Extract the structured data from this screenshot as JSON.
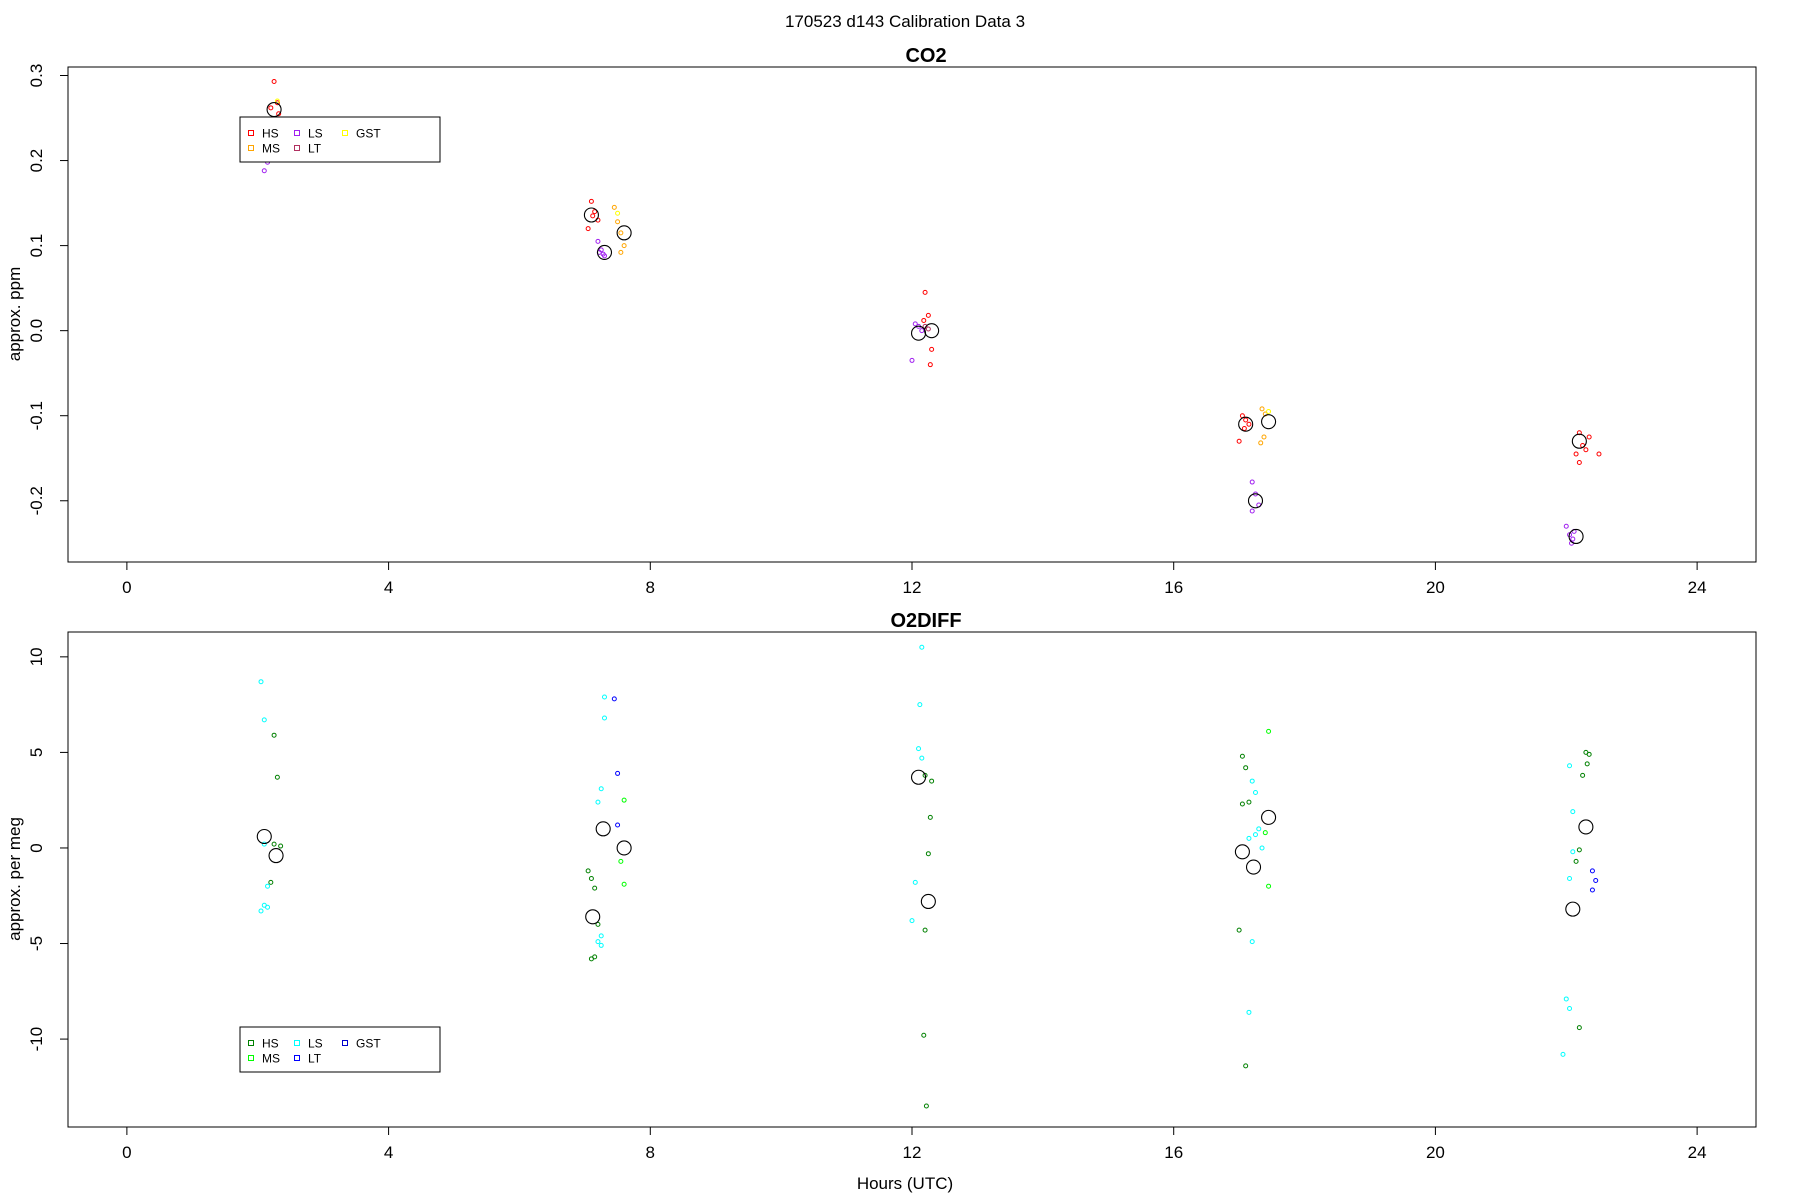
{
  "figure": {
    "title": "170523   d143   Calibration Data 3"
  },
  "chart_data": [
    {
      "type": "scatter",
      "title": "CO2",
      "xlabel": "",
      "ylabel": "approx. ppm",
      "xlim": [
        -0.9,
        24.9
      ],
      "ylim": [
        -0.272,
        0.31
      ],
      "xticks": [
        0,
        4,
        8,
        12,
        16,
        20,
        24
      ],
      "yticks": [
        -0.2,
        -0.1,
        0.0,
        0.1,
        0.2,
        0.3
      ],
      "ytick_labels": [
        "-0.2",
        "-0.1",
        "0.0",
        "0.1",
        "0.2",
        "0.3"
      ],
      "legend": {
        "position": "top-left",
        "entries": [
          {
            "label": "HS",
            "color": "#ff0000"
          },
          {
            "label": "MS",
            "color": "#ffa500"
          },
          {
            "label": "LS",
            "color": "#a020f0"
          },
          {
            "label": "LT",
            "color": "#b03060"
          },
          {
            "label": "GST",
            "color": "#ffff00"
          }
        ]
      },
      "series": [
        {
          "name": "HS",
          "color": "#ff0000",
          "x": [
            2.25,
            2.3,
            2.2,
            2.32,
            7.1,
            7.15,
            7.2,
            7.05,
            7.12,
            12.2,
            12.25,
            12.3,
            12.28,
            12.18,
            17.05,
            17.1,
            17.15,
            17.0,
            17.08,
            22.2,
            22.25,
            22.3,
            22.15,
            22.35,
            22.5,
            22.2
          ],
          "y": [
            0.293,
            0.268,
            0.262,
            0.255,
            0.152,
            0.14,
            0.13,
            0.12,
            0.135,
            0.045,
            0.018,
            -0.022,
            -0.04,
            0.012,
            -0.1,
            -0.105,
            -0.11,
            -0.13,
            -0.115,
            -0.12,
            -0.135,
            -0.14,
            -0.145,
            -0.125,
            -0.145,
            -0.155
          ]
        },
        {
          "name": "MS",
          "color": "#ffa500",
          "x": [
            7.45,
            7.5,
            7.55,
            7.6,
            7.55,
            17.35,
            17.4,
            17.38,
            17.33
          ],
          "y": [
            0.145,
            0.128,
            0.115,
            0.1,
            0.092,
            -0.092,
            -0.098,
            -0.125,
            -0.132
          ]
        },
        {
          "name": "LS",
          "color": "#a020f0",
          "x": [
            2.1,
            2.15,
            2.1,
            7.2,
            7.25,
            7.3,
            7.22,
            7.28,
            12.05,
            12.1,
            12.15,
            12.0,
            17.2,
            17.25,
            17.3,
            17.2,
            22.0,
            22.05,
            22.1,
            22.08,
            22.12
          ],
          "y": [
            0.21,
            0.198,
            0.188,
            0.105,
            0.095,
            0.088,
            0.092,
            0.09,
            0.008,
            0.005,
            0.0,
            -0.035,
            -0.178,
            -0.192,
            -0.205,
            -0.212,
            -0.23,
            -0.24,
            -0.245,
            -0.25,
            -0.236
          ]
        },
        {
          "name": "LT",
          "color": "#b03060",
          "x": [
            12.2,
            12.25
          ],
          "y": [
            0.005,
            0.002
          ]
        },
        {
          "name": "GST",
          "color": "#ffff00",
          "x": [
            7.5,
            17.45,
            2.3
          ],
          "y": [
            0.138,
            -0.095,
            0.27
          ]
        },
        {
          "name": "",
          "color": "#000000",
          "marker": "mean",
          "x": [
            2.25,
            7.1,
            7.3,
            7.6,
            12.1,
            12.3,
            17.1,
            17.25,
            17.45,
            22.2,
            22.15
          ],
          "y": [
            0.26,
            0.136,
            0.092,
            0.115,
            -0.003,
            0.0,
            -0.11,
            -0.2,
            -0.107,
            -0.13,
            -0.242
          ]
        }
      ]
    },
    {
      "type": "scatter",
      "title": "O2DIFF",
      "xlabel": "Hours (UTC)",
      "ylabel": "approx. per meg",
      "xlim": [
        -0.9,
        24.9
      ],
      "ylim": [
        -14.6,
        11.3
      ],
      "xticks": [
        0,
        4,
        8,
        12,
        16,
        20,
        24
      ],
      "yticks": [
        -10,
        -5,
        0,
        5,
        10
      ],
      "ytick_labels": [
        "-10",
        "-5",
        "0",
        "5",
        "10"
      ],
      "legend": {
        "position": "bottom-left",
        "entries": [
          {
            "label": "HS",
            "color": "#008000"
          },
          {
            "label": "MS",
            "color": "#00ff00"
          },
          {
            "label": "LS",
            "color": "#00ffff"
          },
          {
            "label": "LT",
            "color": "#0000ff"
          },
          {
            "label": "GST",
            "color": "#0000cd"
          }
        ]
      },
      "series": [
        {
          "name": "HS",
          "color": "#008000",
          "x": [
            2.25,
            2.3,
            2.25,
            2.35,
            2.2,
            7.05,
            7.1,
            7.15,
            7.2,
            7.1,
            7.15,
            12.2,
            12.3,
            12.28,
            12.25,
            12.2,
            12.18,
            12.22,
            17.05,
            17.1,
            17.15,
            17.05,
            17.0,
            17.1,
            22.3,
            22.35,
            22.32,
            22.25,
            22.2,
            22.15,
            22.2
          ],
          "y": [
            5.9,
            3.7,
            0.2,
            0.1,
            -1.8,
            -1.2,
            -1.6,
            -2.1,
            -4.0,
            -5.8,
            -5.7,
            3.8,
            3.5,
            1.6,
            -0.3,
            -4.3,
            -9.8,
            -13.5,
            4.8,
            4.2,
            2.4,
            2.3,
            -4.3,
            -11.4,
            5.0,
            4.9,
            4.4,
            3.8,
            -0.1,
            -0.7,
            -9.4
          ]
        },
        {
          "name": "MS",
          "color": "#00ff00",
          "x": [
            7.6,
            7.55,
            7.6,
            17.45,
            17.4,
            17.45
          ],
          "y": [
            2.5,
            -0.7,
            -1.9,
            6.1,
            0.8,
            -2.0
          ]
        },
        {
          "name": "LS",
          "color": "#00ffff",
          "x": [
            2.05,
            2.1,
            2.1,
            2.15,
            2.15,
            2.1,
            2.05,
            7.3,
            7.3,
            7.25,
            7.2,
            7.25,
            7.2,
            7.25,
            12.15,
            12.12,
            12.1,
            12.15,
            12.05,
            12.0,
            17.2,
            17.25,
            17.3,
            17.35,
            17.15,
            17.25,
            17.2,
            17.15,
            22.05,
            22.1,
            22.1,
            22.05,
            22.0,
            22.05,
            21.95
          ],
          "y": [
            8.7,
            6.7,
            0.2,
            -2.0,
            -3.1,
            -3.0,
            -3.3,
            7.9,
            6.8,
            3.1,
            2.4,
            -4.6,
            -4.9,
            -5.1,
            10.5,
            7.5,
            5.2,
            4.7,
            -1.8,
            -3.8,
            3.5,
            2.9,
            1.0,
            0.0,
            0.5,
            0.7,
            -4.9,
            -8.6,
            4.3,
            1.9,
            -0.2,
            -1.6,
            -7.9,
            -8.4,
            -10.8
          ]
        },
        {
          "name": "LT",
          "color": "#0000ff",
          "x": [
            7.45,
            7.5,
            7.5,
            22.4,
            22.45,
            22.4
          ],
          "y": [
            7.8,
            3.9,
            1.2,
            -1.2,
            -1.7,
            -2.2
          ]
        },
        {
          "name": "",
          "color": "#000000",
          "marker": "mean",
          "x": [
            2.1,
            2.28,
            7.12,
            7.28,
            7.6,
            12.1,
            12.25,
            17.05,
            17.22,
            17.45,
            22.3,
            22.1
          ],
          "y": [
            0.6,
            -0.4,
            -3.6,
            1.0,
            0.0,
            3.7,
            -2.8,
            -0.2,
            -1.0,
            1.6,
            1.1,
            -3.2
          ]
        }
      ]
    }
  ]
}
